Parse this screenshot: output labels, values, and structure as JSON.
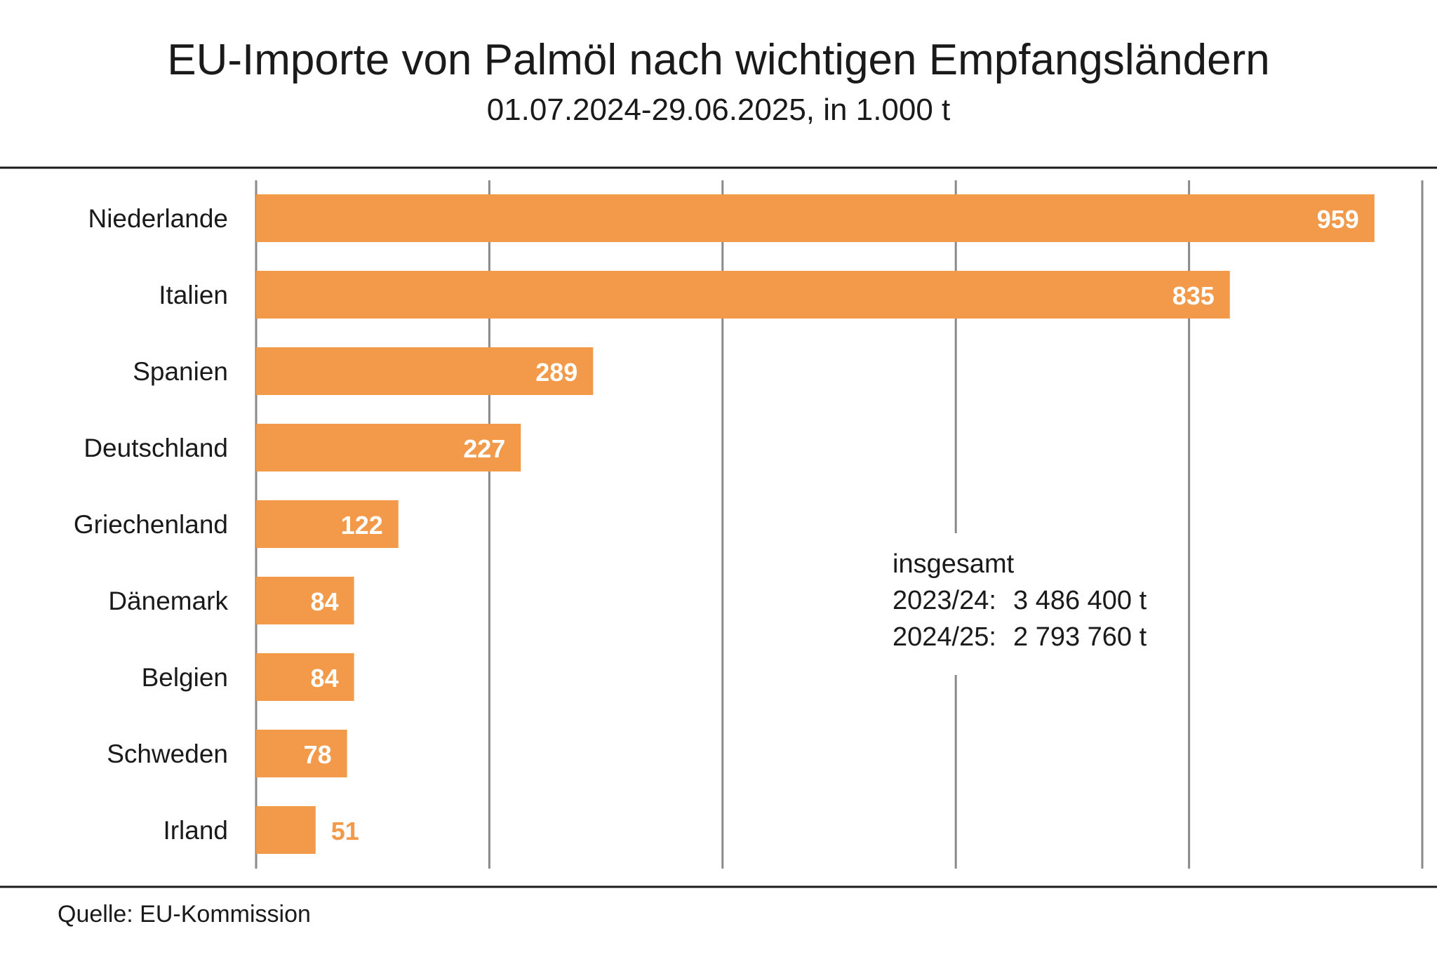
{
  "title": "EU-Importe von Palmöl nach wichtigen Empfangsländern",
  "subtitle": "01.07.2024-29.06.2025, in 1.000 t",
  "source": "Quelle: EU-Kommission",
  "summary": {
    "heading": "insgesamt",
    "rows": [
      {
        "label": "2023/24:",
        "value": "3 486 400 t"
      },
      {
        "label": "2024/25:",
        "value": "2 793 760 t"
      }
    ]
  },
  "colors": {
    "bar": "#F2994A",
    "bar_label_inside": "#ffffff",
    "bar_label_outside": "#F2994A",
    "grid": "#8a8a8a",
    "rule": "#1a1a1a"
  },
  "chart_data": {
    "type": "bar",
    "orientation": "horizontal",
    "title": "EU-Importe von Palmöl nach wichtigen Empfangsländern",
    "subtitle": "01.07.2024-29.06.2025, in 1.000 t",
    "categories": [
      "Niederlande",
      "Italien",
      "Spanien",
      "Deutschland",
      "Griechenland",
      "Dänemark",
      "Belgien",
      "Schweden",
      "Irland"
    ],
    "values": [
      959,
      835,
      289,
      227,
      122,
      84,
      84,
      78,
      51
    ],
    "labels": [
      "959",
      "835",
      "289",
      "227",
      "122",
      "84",
      "84",
      "78",
      "51"
    ],
    "xlim": [
      0,
      1000
    ],
    "grid_step": 200,
    "grid": true,
    "xlabel": "",
    "ylabel": ""
  }
}
